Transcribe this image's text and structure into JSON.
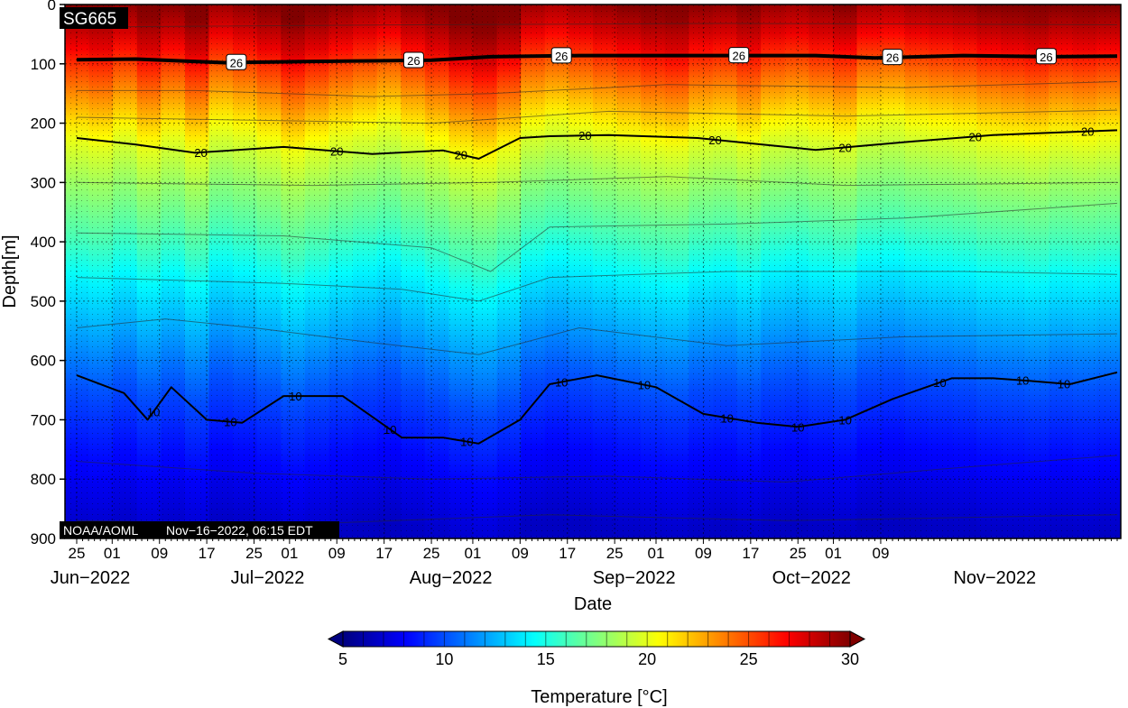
{
  "chart_data": {
    "type": "heatmap",
    "title": "SG665",
    "footer_left": "NOAA/AOML",
    "footer_right": "Nov−16−2022, 06:15 EDT",
    "xlabel": "Date",
    "ylabel": "Depth[m]",
    "ylim": [
      0,
      900
    ],
    "y_inverted": true,
    "y_ticks": [
      0,
      100,
      200,
      300,
      400,
      500,
      600,
      700,
      800,
      900
    ],
    "x_range_days": [
      0,
      176
    ],
    "x_ticks": [
      {
        "day": 0,
        "label": "25"
      },
      {
        "day": 6,
        "label": "01"
      },
      {
        "day": 14,
        "label": "09"
      },
      {
        "day": 22,
        "label": "17"
      },
      {
        "day": 30,
        "label": "25"
      },
      {
        "day": 36,
        "label": "01"
      },
      {
        "day": 44,
        "label": "09"
      },
      {
        "day": 52,
        "label": "17"
      },
      {
        "day": 60,
        "label": "25"
      },
      {
        "day": 67,
        "label": "01"
      },
      {
        "day": 75,
        "label": "09"
      },
      {
        "day": 83,
        "label": "17"
      },
      {
        "day": 91,
        "label": "25"
      },
      {
        "day": 98,
        "label": "01"
      },
      {
        "day": 106,
        "label": "09"
      },
      {
        "day": 114,
        "label": "17"
      },
      {
        "day": 122,
        "label": "25"
      },
      {
        "day": 128,
        "label": "01"
      },
      {
        "day": 136,
        "label": "09"
      }
    ],
    "month_labels": [
      {
        "day": 0,
        "label": "Jun−2022"
      },
      {
        "day": 30,
        "label": "Jul−2022"
      },
      {
        "day": 61,
        "label": "Aug−2022"
      },
      {
        "day": 92,
        "label": "Sep−2022"
      },
      {
        "day": 122,
        "label": "Oct−2022"
      },
      {
        "day": 153,
        "label": "Nov−2022"
      }
    ],
    "series": [
      {
        "label": "26",
        "points": [
          [
            0,
            93
          ],
          [
            10,
            92
          ],
          [
            25,
            98
          ],
          [
            40,
            96
          ],
          [
            50,
            95
          ],
          [
            60,
            94
          ],
          [
            70,
            88
          ],
          [
            85,
            86
          ],
          [
            100,
            86
          ],
          [
            115,
            86
          ],
          [
            125,
            86
          ],
          [
            135,
            90
          ],
          [
            150,
            86
          ],
          [
            165,
            88
          ],
          [
            176,
            87
          ]
        ]
      },
      {
        "label": "20",
        "points": [
          [
            0,
            225
          ],
          [
            10,
            236
          ],
          [
            20,
            250
          ],
          [
            35,
            240
          ],
          [
            50,
            252
          ],
          [
            62,
            246
          ],
          [
            68,
            260
          ],
          [
            75,
            225
          ],
          [
            80,
            222
          ],
          [
            90,
            220
          ],
          [
            105,
            225
          ],
          [
            115,
            235
          ],
          [
            125,
            245
          ],
          [
            140,
            232
          ],
          [
            155,
            220
          ],
          [
            176,
            212
          ]
        ]
      },
      {
        "label": "10",
        "points": [
          [
            0,
            625
          ],
          [
            8,
            655
          ],
          [
            12,
            700
          ],
          [
            16,
            645
          ],
          [
            22,
            700
          ],
          [
            28,
            705
          ],
          [
            35,
            660
          ],
          [
            45,
            660
          ],
          [
            55,
            730
          ],
          [
            62,
            730
          ],
          [
            68,
            740
          ],
          [
            75,
            700
          ],
          [
            80,
            640
          ],
          [
            88,
            625
          ],
          [
            98,
            645
          ],
          [
            106,
            690
          ],
          [
            115,
            705
          ],
          [
            122,
            712
          ],
          [
            130,
            700
          ],
          [
            138,
            665
          ],
          [
            148,
            630
          ],
          [
            155,
            630
          ],
          [
            162,
            635
          ],
          [
            168,
            640
          ],
          [
            176,
            620
          ]
        ]
      }
    ],
    "thin_contours": [
      {
        "value": 28,
        "points": [
          [
            0,
            38
          ],
          [
            60,
            34
          ],
          [
            110,
            32
          ],
          [
            176,
            34
          ]
        ]
      },
      {
        "value": 24,
        "points": [
          [
            0,
            145
          ],
          [
            20,
            145
          ],
          [
            50,
            155
          ],
          [
            70,
            150
          ],
          [
            100,
            135
          ],
          [
            140,
            140
          ],
          [
            176,
            130
          ]
        ]
      },
      {
        "value": 22,
        "points": [
          [
            0,
            190
          ],
          [
            30,
            195
          ],
          [
            60,
            200
          ],
          [
            90,
            180
          ],
          [
            130,
            188
          ],
          [
            176,
            178
          ]
        ]
      },
      {
        "value": 18,
        "points": [
          [
            0,
            300
          ],
          [
            40,
            305
          ],
          [
            70,
            300
          ],
          [
            100,
            290
          ],
          [
            130,
            305
          ],
          [
            176,
            300
          ]
        ]
      },
      {
        "value": 16,
        "points": [
          [
            0,
            385
          ],
          [
            35,
            390
          ],
          [
            60,
            410
          ],
          [
            70,
            450
          ],
          [
            80,
            375
          ],
          [
            110,
            370
          ],
          [
            140,
            360
          ],
          [
            176,
            335
          ]
        ]
      },
      {
        "value": 14,
        "points": [
          [
            0,
            460
          ],
          [
            35,
            470
          ],
          [
            55,
            480
          ],
          [
            68,
            500
          ],
          [
            80,
            460
          ],
          [
            110,
            450
          ],
          [
            150,
            450
          ],
          [
            176,
            455
          ]
        ]
      },
      {
        "value": 12,
        "points": [
          [
            0,
            545
          ],
          [
            15,
            530
          ],
          [
            30,
            545
          ],
          [
            50,
            570
          ],
          [
            68,
            590
          ],
          [
            85,
            545
          ],
          [
            110,
            575
          ],
          [
            140,
            560
          ],
          [
            176,
            555
          ]
        ]
      },
      {
        "value": 8,
        "points": [
          [
            0,
            770
          ],
          [
            30,
            790
          ],
          [
            60,
            800
          ],
          [
            90,
            795
          ],
          [
            120,
            805
          ],
          [
            150,
            780
          ],
          [
            176,
            760
          ]
        ]
      },
      {
        "value": 6,
        "points": [
          [
            0,
            870
          ],
          [
            40,
            875
          ],
          [
            80,
            860
          ],
          [
            120,
            870
          ],
          [
            176,
            860
          ]
        ]
      }
    ],
    "colorbar": {
      "label": "Temperature [°C]",
      "min": 5,
      "max": 30,
      "ticks": [
        5,
        10,
        15,
        20,
        25,
        30
      ],
      "colormap": "jet",
      "extend": "both"
    }
  }
}
